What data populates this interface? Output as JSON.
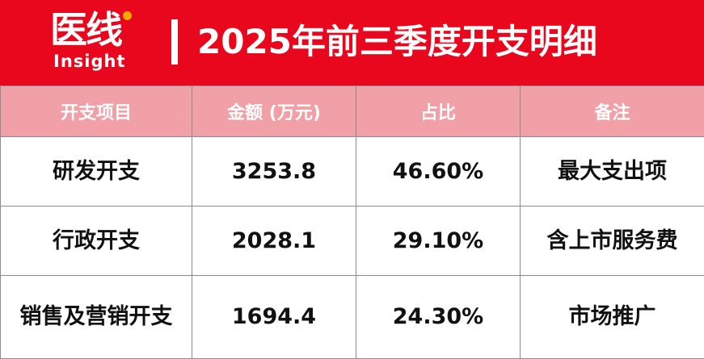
{
  "header": {
    "logo": "医线",
    "logo_sub": "Insight",
    "title": "2025年前三季度开支明细"
  },
  "table": {
    "columns": [
      "开支项目",
      "金额 (万元)",
      "占比",
      "备注"
    ],
    "rows": [
      [
        "研发开支",
        "3253.8",
        "46.60%",
        "最大支出项"
      ],
      [
        "行政开支",
        "2028.1",
        "29.10%",
        "含上市服务费"
      ],
      [
        "销售及营销开支",
        "1694.4",
        "24.30%",
        "市场推广"
      ]
    ]
  }
}
